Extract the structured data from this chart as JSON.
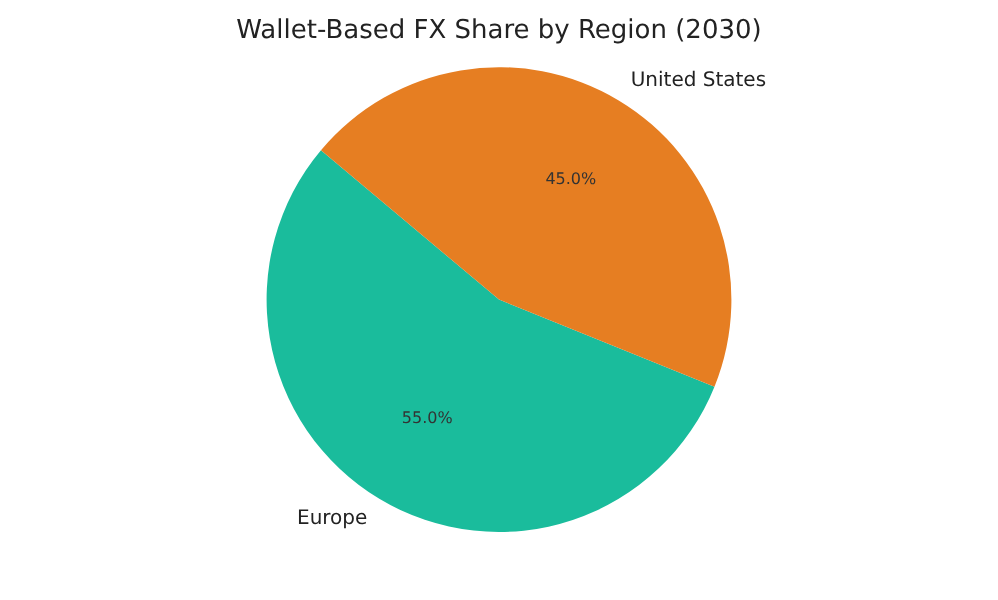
{
  "chart_data": {
    "type": "pie",
    "title": "Wallet-Based FX Share by Region (2030)",
    "categories": [
      "Europe",
      "United States"
    ],
    "values": [
      55,
      45
    ],
    "colors": [
      "#1abc9c",
      "#e67e22"
    ],
    "value_labels": [
      "55.0%",
      "45.0%"
    ],
    "legend": false
  }
}
